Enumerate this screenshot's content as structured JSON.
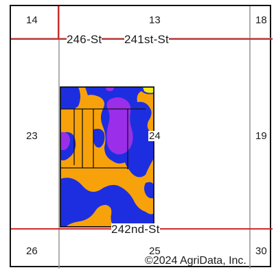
{
  "map": {
    "sections": {
      "s14": "14",
      "s13": "13",
      "s18": "18",
      "s23": "23",
      "s24": "24",
      "s19": "19",
      "s26": "26",
      "s25": "25",
      "s30": "30"
    },
    "roads": {
      "north_a": "246-St",
      "north_b": "241st-St",
      "south": "242nd-St"
    },
    "copyright": "©2024 AgriData, Inc.",
    "colors": {
      "section_line": "#9a9a9a",
      "road_line": "#cc2a2a",
      "soil_orange": "#f7a20a",
      "soil_blue": "#1d2ee0",
      "soil_purple": "#9b2ee8",
      "soil_yellow": "#f2ec12",
      "outline": "#111111"
    }
  }
}
